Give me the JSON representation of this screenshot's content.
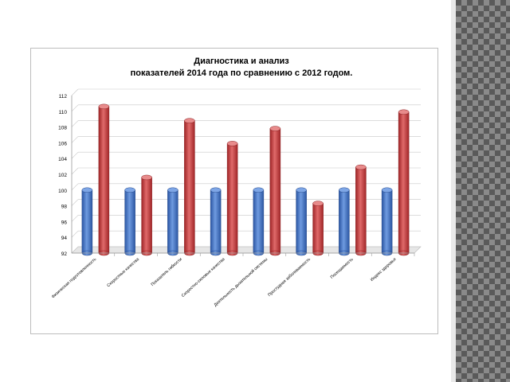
{
  "chart_data": {
    "type": "bar",
    "title_lines": [
      "Диагностика и анализ",
      "показателей 2014 года по сравнению с 2012 годом."
    ],
    "categories": [
      "Физическая подготовленность",
      "Скоростные качества",
      "Показатель гибкости",
      "Скоростно-силовые качества",
      "Деятельность дыхательной системы",
      "Простудная заболеваемость",
      "Посещаемость",
      "Индекс здоровья"
    ],
    "series": [
      {
        "values": [
          100,
          100,
          100,
          100,
          100,
          100,
          100,
          100
        ],
        "color": "#3d6fc4"
      },
      {
        "values": [
          110.6,
          101.6,
          108.8,
          105.9,
          107.8,
          98.3,
          102.9,
          109.9
        ],
        "color": "#c0393b"
      }
    ],
    "ylim": [
      92,
      112
    ],
    "yticks": [
      "92",
      "94",
      "96",
      "98",
      "100",
      "102",
      "104",
      "106",
      "108",
      "110",
      "112"
    ],
    "grid": true
  }
}
